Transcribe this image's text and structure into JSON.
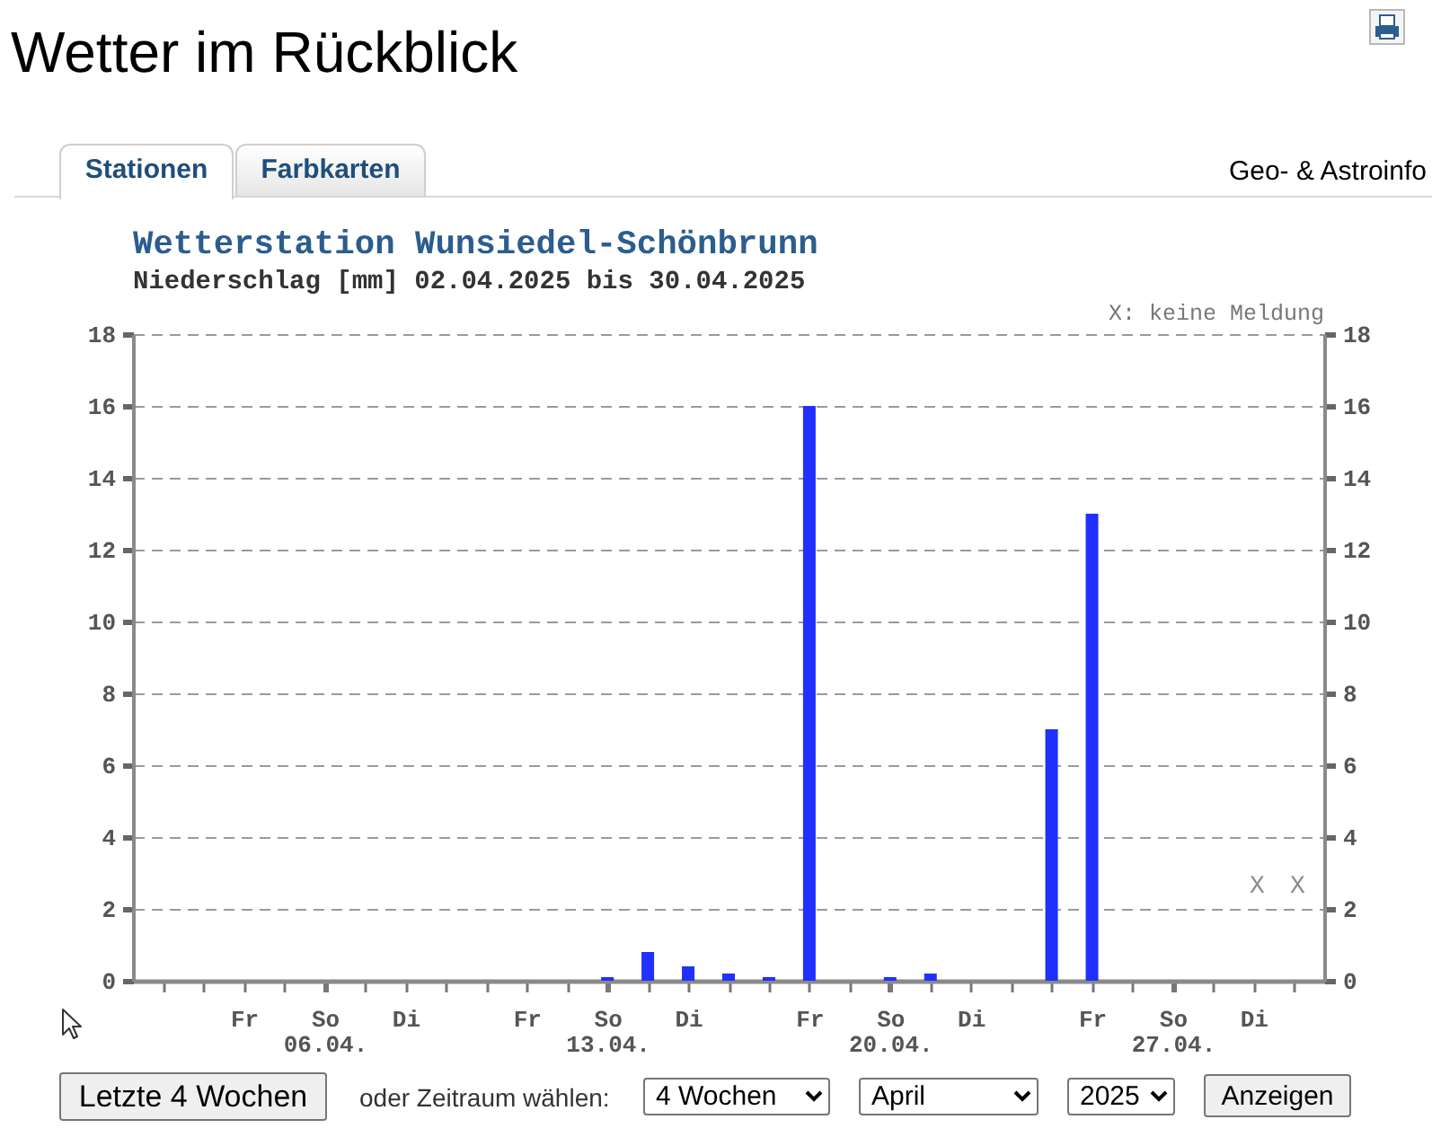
{
  "chart_data": {
    "type": "bar",
    "title": "Wetterstation Wunsiedel-Schönbrunn",
    "subtitle": "Niederschlag [mm] 02.04.2025 bis 30.04.2025",
    "x": [
      "2025-04-02",
      "2025-04-03",
      "2025-04-04",
      "2025-04-05",
      "2025-04-06",
      "2025-04-07",
      "2025-04-08",
      "2025-04-09",
      "2025-04-10",
      "2025-04-11",
      "2025-04-12",
      "2025-04-13",
      "2025-04-14",
      "2025-04-15",
      "2025-04-16",
      "2025-04-17",
      "2025-04-18",
      "2025-04-19",
      "2025-04-20",
      "2025-04-21",
      "2025-04-22",
      "2025-04-23",
      "2025-04-24",
      "2025-04-25",
      "2025-04-26",
      "2025-04-27",
      "2025-04-28"
    ],
    "values": [
      0,
      0,
      0,
      0,
      0,
      0,
      0,
      0,
      0,
      0,
      0,
      0.1,
      0.8,
      0.4,
      0.2,
      0.1,
      16,
      0,
      0.1,
      0.2,
      0,
      0,
      7,
      13,
      0,
      0,
      0
    ],
    "color": "#1f30ff",
    "xlim": [
      "2025-04-01T06:00",
      "2025-04-30T18:00"
    ],
    "xticks": [
      {
        "value": "2025-04-02",
        "label": null
      },
      {
        "value": "2025-04-03",
        "label": null
      },
      {
        "value": "2025-04-04",
        "label": "Fr"
      },
      {
        "value": "2025-04-05",
        "label": null
      },
      {
        "value": "2025-04-06",
        "label": "So\n06.04."
      },
      {
        "value": "2025-04-07",
        "label": null
      },
      {
        "value": "2025-04-08",
        "label": "Di"
      },
      {
        "value": "2025-04-09",
        "label": null
      },
      {
        "value": "2025-04-10",
        "label": null
      },
      {
        "value": "2025-04-11",
        "label": "Fr"
      },
      {
        "value": "2025-04-12",
        "label": null
      },
      {
        "value": "2025-04-13",
        "label": "So\n13.04."
      },
      {
        "value": "2025-04-14",
        "label": null
      },
      {
        "value": "2025-04-15",
        "label": "Di"
      },
      {
        "value": "2025-04-16",
        "label": null
      },
      {
        "value": "2025-04-17",
        "label": null
      },
      {
        "value": "2025-04-18",
        "label": "Fr"
      },
      {
        "value": "2025-04-19",
        "label": null
      },
      {
        "value": "2025-04-20",
        "label": "So\n20.04."
      },
      {
        "value": "2025-04-21",
        "label": null
      },
      {
        "value": "2025-04-22",
        "label": "Di"
      },
      {
        "value": "2025-04-23",
        "label": null
      },
      {
        "value": "2025-04-24",
        "label": null
      },
      {
        "value": "2025-04-25",
        "label": "Fr"
      },
      {
        "value": "2025-04-26",
        "label": null
      },
      {
        "value": "2025-04-27",
        "label": "So\n27.04."
      },
      {
        "value": "2025-04-28",
        "label": null
      },
      {
        "value": "2025-04-29",
        "label": "Di"
      },
      {
        "value": "2025-04-30",
        "label": null
      }
    ],
    "ylim": [
      0,
      18
    ],
    "yticks": [
      0,
      2,
      4,
      6,
      8,
      10,
      12,
      14,
      16,
      18
    ],
    "y2lim": [
      0,
      18
    ],
    "y2ticks": [
      0,
      2,
      4,
      6,
      8,
      10,
      12,
      14,
      16,
      18
    ],
    "grid": "y",
    "annotations": [
      "Wetter im Rückblick",
      "Stationen",
      "Farbkarten",
      "Geo- & Astroinfo",
      "X: keine Meldung",
      "X",
      "X",
      "Letzte 4 Wochen",
      "oder Zeitraum wählen:",
      "4 Wochen",
      "April",
      "2025",
      "Anzeigen"
    ]
  }
}
